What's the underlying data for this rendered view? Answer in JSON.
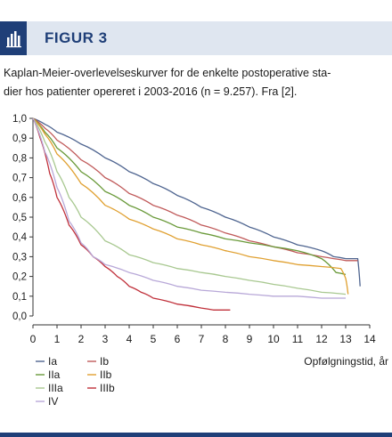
{
  "figure": {
    "label": "FIGUR 3",
    "caption_lines": [
      "Kaplan-Meier-overlevelseskurver for de enkelte postoperative sta-",
      "dier hos patienter opereret i 2003-2016 (n = 9.257). Fra [2]."
    ]
  },
  "chart_data": {
    "type": "line",
    "title": "",
    "xlabel": "Opfølgningstid, år",
    "ylabel": "",
    "xlim": [
      0,
      14
    ],
    "ylim": [
      0,
      1
    ],
    "x_ticks": [
      0,
      1,
      2,
      3,
      4,
      5,
      6,
      7,
      8,
      9,
      10,
      11,
      12,
      13,
      14
    ],
    "y_ticks": [
      "0,0",
      "0,1",
      "0,2",
      "0,3",
      "0,4",
      "0,5",
      "0,6",
      "0,7",
      "0,8",
      "0,9",
      "1,0"
    ],
    "grid": false,
    "legend_position": "bottom-left",
    "series": [
      {
        "name": "Ia",
        "color": "#4f6590",
        "points": [
          [
            0,
            1.0
          ],
          [
            0.5,
            0.97
          ],
          [
            1,
            0.93
          ],
          [
            2,
            0.87
          ],
          [
            3,
            0.8
          ],
          [
            4,
            0.73
          ],
          [
            5,
            0.67
          ],
          [
            6,
            0.61
          ],
          [
            7,
            0.55
          ],
          [
            8,
            0.5
          ],
          [
            9,
            0.45
          ],
          [
            10,
            0.4
          ],
          [
            11,
            0.36
          ],
          [
            12,
            0.33
          ],
          [
            12.5,
            0.3
          ],
          [
            13,
            0.29
          ],
          [
            13.5,
            0.29
          ],
          [
            13.6,
            0.15
          ]
        ]
      },
      {
        "name": "Ib",
        "color": "#c05a5a",
        "points": [
          [
            0,
            1.0
          ],
          [
            0.5,
            0.95
          ],
          [
            1,
            0.89
          ],
          [
            2,
            0.79
          ],
          [
            3,
            0.7
          ],
          [
            4,
            0.62
          ],
          [
            5,
            0.56
          ],
          [
            6,
            0.51
          ],
          [
            7,
            0.46
          ],
          [
            8,
            0.42
          ],
          [
            9,
            0.38
          ],
          [
            10,
            0.35
          ],
          [
            11,
            0.32
          ],
          [
            12,
            0.3
          ],
          [
            12.5,
            0.29
          ],
          [
            13,
            0.28
          ],
          [
            13.5,
            0.28
          ]
        ]
      },
      {
        "name": "IIa",
        "color": "#6a9a3a",
        "points": [
          [
            0,
            1.0
          ],
          [
            0.5,
            0.93
          ],
          [
            1,
            0.85
          ],
          [
            2,
            0.73
          ],
          [
            3,
            0.63
          ],
          [
            4,
            0.56
          ],
          [
            5,
            0.5
          ],
          [
            6,
            0.45
          ],
          [
            7,
            0.42
          ],
          [
            8,
            0.39
          ],
          [
            9,
            0.37
          ],
          [
            10,
            0.35
          ],
          [
            11,
            0.33
          ],
          [
            12,
            0.29
          ],
          [
            12.6,
            0.22
          ],
          [
            13,
            0.21
          ]
        ]
      },
      {
        "name": "IIb",
        "color": "#e0a030",
        "points": [
          [
            0,
            1.0
          ],
          [
            0.5,
            0.92
          ],
          [
            1,
            0.82
          ],
          [
            2,
            0.67
          ],
          [
            3,
            0.56
          ],
          [
            4,
            0.49
          ],
          [
            5,
            0.44
          ],
          [
            6,
            0.39
          ],
          [
            7,
            0.36
          ],
          [
            8,
            0.33
          ],
          [
            9,
            0.3
          ],
          [
            10,
            0.28
          ],
          [
            11,
            0.26
          ],
          [
            12,
            0.25
          ],
          [
            12.8,
            0.24
          ],
          [
            13,
            0.19
          ],
          [
            13.1,
            0.11
          ]
        ]
      },
      {
        "name": "IIIa",
        "color": "#a8c890",
        "points": [
          [
            0,
            1.0
          ],
          [
            0.5,
            0.88
          ],
          [
            1,
            0.73
          ],
          [
            1.5,
            0.6
          ],
          [
            2,
            0.5
          ],
          [
            3,
            0.38
          ],
          [
            4,
            0.31
          ],
          [
            5,
            0.27
          ],
          [
            6,
            0.24
          ],
          [
            7,
            0.22
          ],
          [
            8,
            0.2
          ],
          [
            9,
            0.18
          ],
          [
            10,
            0.16
          ],
          [
            11,
            0.14
          ],
          [
            12,
            0.12
          ],
          [
            13,
            0.11
          ]
        ]
      },
      {
        "name": "IIIb",
        "color": "#c0303a",
        "points": [
          [
            0,
            1.0
          ],
          [
            0.3,
            0.9
          ],
          [
            0.7,
            0.72
          ],
          [
            1,
            0.6
          ],
          [
            1.5,
            0.46
          ],
          [
            2,
            0.36
          ],
          [
            2.5,
            0.3
          ],
          [
            3,
            0.25
          ],
          [
            3.5,
            0.2
          ],
          [
            4,
            0.15
          ],
          [
            4.5,
            0.12
          ],
          [
            5,
            0.09
          ],
          [
            6,
            0.06
          ],
          [
            7,
            0.04
          ],
          [
            7.5,
            0.03
          ],
          [
            8.2,
            0.03
          ]
        ]
      },
      {
        "name": "IV",
        "color": "#b8a8d8",
        "points": [
          [
            0,
            1.0
          ],
          [
            0.5,
            0.83
          ],
          [
            1,
            0.65
          ],
          [
            1.5,
            0.48
          ],
          [
            2,
            0.37
          ],
          [
            2.5,
            0.3
          ],
          [
            3,
            0.26
          ],
          [
            4,
            0.22
          ],
          [
            5,
            0.18
          ],
          [
            6,
            0.15
          ],
          [
            7,
            0.13
          ],
          [
            8,
            0.12
          ],
          [
            9,
            0.11
          ],
          [
            10,
            0.1
          ],
          [
            11,
            0.1
          ],
          [
            12,
            0.09
          ],
          [
            13,
            0.09
          ]
        ]
      }
    ],
    "legend_order": [
      "Ia",
      "Ib",
      "IIa",
      "IIb",
      "IIIa",
      "IIIb",
      "IV"
    ]
  }
}
